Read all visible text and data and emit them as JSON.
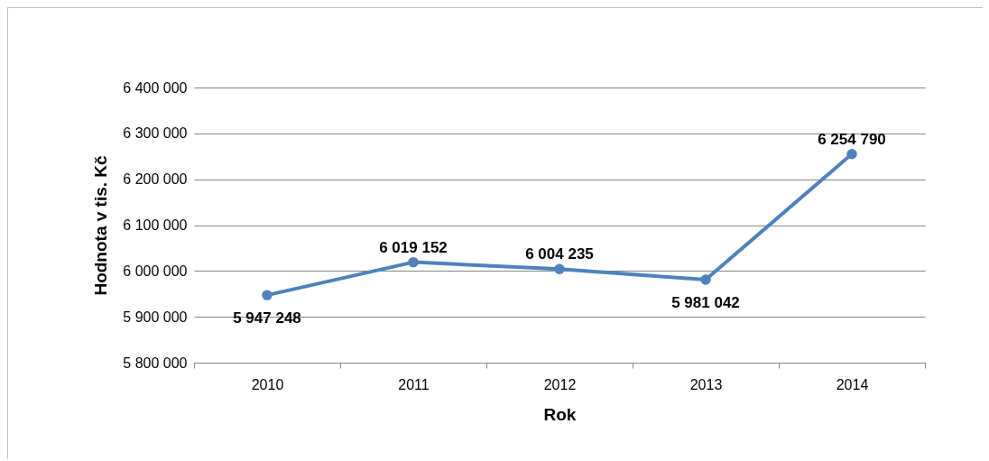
{
  "chart_data": {
    "type": "line",
    "xlabel": "Rok",
    "ylabel": "Hodnota v tis. Kč",
    "categories": [
      "2010",
      "2011",
      "2012",
      "2013",
      "2014"
    ],
    "series": [
      {
        "color": "#4f81bd",
        "values": [
          5947248,
          6019152,
          6004235,
          5981042,
          6254790
        ]
      }
    ],
    "value_labels": [
      "5 947 248",
      "6 019 152",
      "6 004 235",
      "5 981 042",
      "6 254 790"
    ],
    "ylim": [
      5800000,
      6400000
    ],
    "yticks": [
      {
        "value": 5800000,
        "label": "5 800 000"
      },
      {
        "value": 5900000,
        "label": "5 900 000"
      },
      {
        "value": 6000000,
        "label": "6 000 000"
      },
      {
        "value": 6100000,
        "label": "6 100 000"
      },
      {
        "value": 6200000,
        "label": "6 200 000"
      },
      {
        "value": 6300000,
        "label": "6 300 000"
      },
      {
        "value": 6400000,
        "label": "6 400 000"
      }
    ],
    "grid": "y",
    "marker": "circle",
    "legend": false
  }
}
